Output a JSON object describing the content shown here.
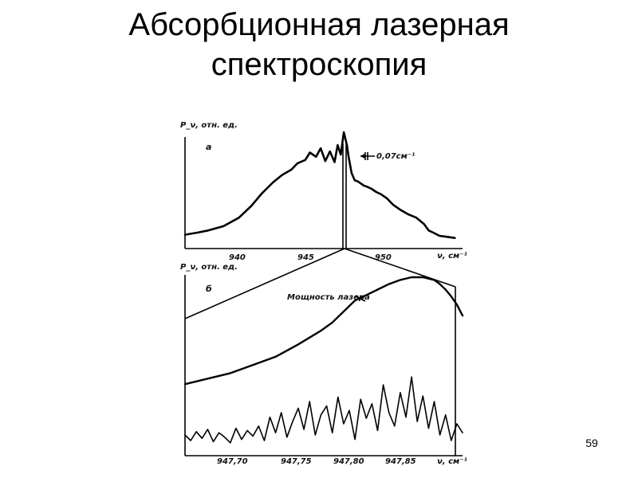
{
  "slide": {
    "title_line1": "Абсорбционная лазерная",
    "title_line2": "спектроскопия",
    "page_number": "59"
  },
  "chart_data": [
    {
      "type": "line",
      "panel_label": "а",
      "ylabel": "P_ν, отн. ед.",
      "xlabel": "ν, см⁻¹",
      "x_ticks": [
        "940",
        "945",
        "950"
      ],
      "xlim": [
        936.5,
        954.5
      ],
      "annotation": "0,07см⁻¹",
      "series": [
        {
          "x": [
            936.5,
            937.3,
            938.0,
            939.0,
            940.0,
            940.8,
            941.5,
            942.2,
            942.8,
            943.4,
            943.8,
            944.3,
            944.6,
            945.0,
            945.3,
            945.6,
            945.9,
            946.2,
            946.4,
            946.6,
            946.8,
            947.0,
            947.1,
            947.3,
            947.5,
            947.7,
            947.9,
            948.1,
            948.3,
            948.6,
            948.9,
            949.2,
            949.6,
            950.0,
            950.5,
            951.0,
            951.5,
            952.0,
            952.3,
            952.6,
            953.0,
            953.5,
            954.0
          ],
          "y": [
            0.04,
            0.06,
            0.08,
            0.12,
            0.2,
            0.31,
            0.43,
            0.53,
            0.6,
            0.65,
            0.71,
            0.74,
            0.81,
            0.77,
            0.85,
            0.73,
            0.82,
            0.72,
            0.88,
            0.79,
            1.0,
            0.88,
            0.78,
            0.62,
            0.55,
            0.54,
            0.52,
            0.5,
            0.49,
            0.47,
            0.44,
            0.42,
            0.38,
            0.32,
            0.27,
            0.23,
            0.2,
            0.14,
            0.08,
            0.06,
            0.03,
            0.02,
            0.01
          ]
        }
      ]
    },
    {
      "type": "line",
      "panel_label": "б",
      "ylabel": "P_ν, отн. ед.",
      "xlabel": "ν, см⁻¹",
      "x_ticks": [
        "947,70",
        "947,75",
        "947,80",
        "947,85"
      ],
      "xlim": [
        947.66,
        947.905
      ],
      "series": [
        {
          "name": "Мощность лазера",
          "x": [
            947.66,
            947.68,
            947.7,
            947.72,
            947.74,
            947.76,
            947.78,
            947.79,
            947.8,
            947.81,
            947.82,
            947.83,
            947.84,
            947.85,
            947.86,
            947.87,
            947.875,
            947.88,
            947.885,
            947.89,
            947.895,
            947.9,
            947.905
          ],
          "y": [
            0.22,
            0.26,
            0.3,
            0.36,
            0.42,
            0.51,
            0.61,
            0.67,
            0.75,
            0.83,
            0.87,
            0.91,
            0.95,
            0.98,
            1.0,
            1.0,
            0.99,
            0.98,
            0.95,
            0.91,
            0.86,
            0.8,
            0.72
          ]
        },
        {
          "name": "",
          "x": [
            947.66,
            947.665,
            947.67,
            947.675,
            947.68,
            947.685,
            947.69,
            947.695,
            947.7,
            947.705,
            947.71,
            947.715,
            947.72,
            947.725,
            947.73,
            947.735,
            947.74,
            947.745,
            947.75,
            947.755,
            947.76,
            947.765,
            947.77,
            947.775,
            947.78,
            947.785,
            947.79,
            947.795,
            947.8,
            947.805,
            947.81,
            947.815,
            947.82,
            947.825,
            947.83,
            947.835,
            947.84,
            947.845,
            947.85,
            947.855,
            947.86,
            947.865,
            947.87,
            947.875,
            947.88,
            947.885,
            947.89,
            947.895,
            947.9,
            947.905
          ],
          "y": [
            0.1,
            0.05,
            0.13,
            0.07,
            0.15,
            0.04,
            0.12,
            0.08,
            0.03,
            0.16,
            0.06,
            0.14,
            0.09,
            0.18,
            0.05,
            0.26,
            0.12,
            0.3,
            0.08,
            0.22,
            0.34,
            0.15,
            0.4,
            0.1,
            0.28,
            0.36,
            0.12,
            0.44,
            0.2,
            0.32,
            0.06,
            0.42,
            0.25,
            0.38,
            0.14,
            0.55,
            0.3,
            0.18,
            0.48,
            0.26,
            0.62,
            0.22,
            0.45,
            0.16,
            0.4,
            0.1,
            0.28,
            0.05,
            0.2,
            0.12
          ]
        }
      ]
    }
  ]
}
